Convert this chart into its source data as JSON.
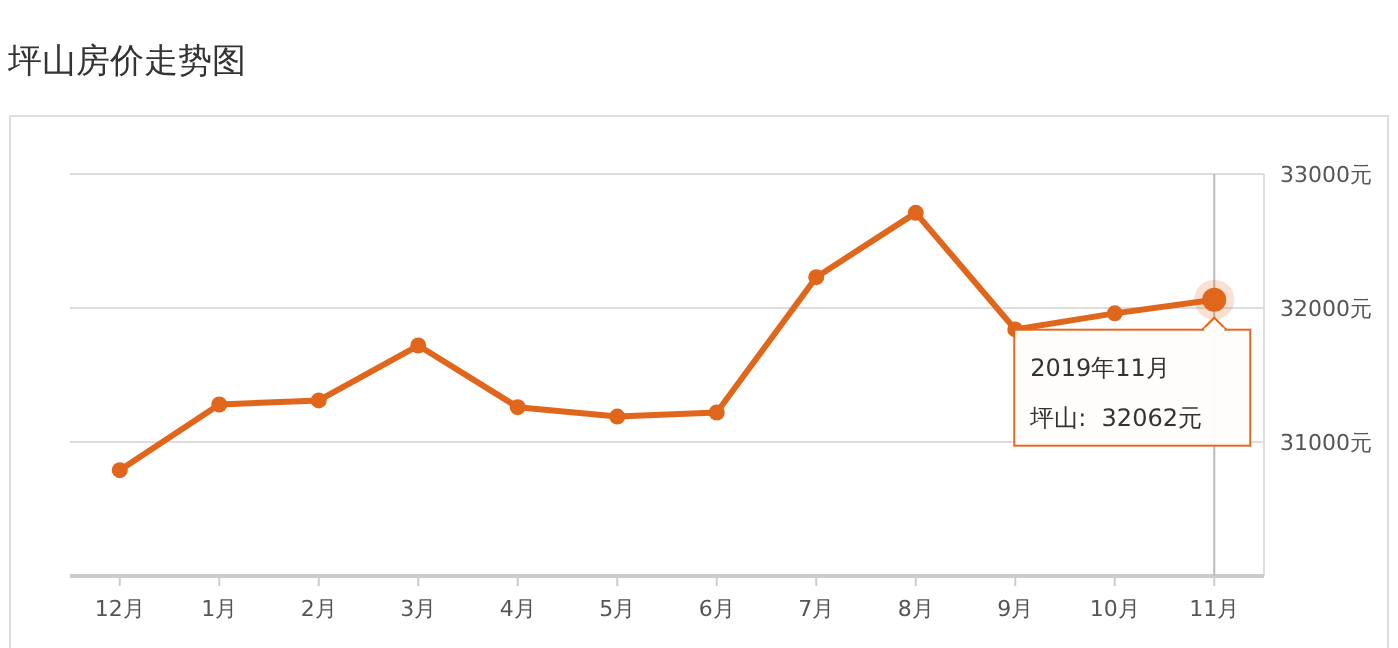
{
  "chart_data": {
    "type": "line",
    "title": "坪山房价走势图",
    "categories": [
      "12月",
      "1月",
      "2月",
      "3月",
      "4月",
      "5月",
      "6月",
      "7月",
      "8月",
      "9月",
      "10月",
      "11月"
    ],
    "series": [
      {
        "color": "#e0661c",
        "values": [
          30790,
          31280,
          31310,
          31720,
          31260,
          31190,
          31220,
          32230,
          32710,
          31840,
          31960,
          32062
        ]
      }
    ],
    "ylim": [
      30000,
      33000
    ],
    "yticks": [
      {
        "value": 30000,
        "label": null
      },
      {
        "value": 31000,
        "label": "31000元"
      },
      {
        "value": 32000,
        "label": "32000元"
      },
      {
        "value": 33000,
        "label": "33000元"
      }
    ],
    "grid": "y",
    "marker": "circle",
    "line_style": "solid",
    "ref_lines": [
      {
        "axis": "x",
        "value": "11月",
        "color": "#bbbbbb"
      }
    ],
    "annotations": [
      {
        "text": "2019年11月",
        "x": "11月",
        "y": 32062
      },
      "坪山:  32062元"
    ]
  }
}
